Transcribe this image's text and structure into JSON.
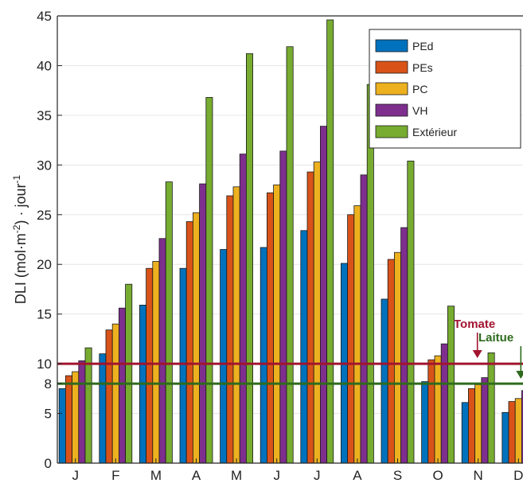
{
  "chart_data": {
    "type": "bar",
    "title": "",
    "xlabel": "",
    "ylabel": "DLI (mol·m⁻²)·jour⁻¹",
    "ylim": [
      0,
      45
    ],
    "yticks": [
      0,
      5,
      8,
      10,
      15,
      20,
      25,
      30,
      35,
      40,
      45
    ],
    "categories": [
      "J",
      "F",
      "M",
      "A",
      "M",
      "J",
      "J",
      "A",
      "S",
      "O",
      "N",
      "D"
    ],
    "series": [
      {
        "name": "PEd",
        "color": "#0072BD",
        "values": [
          7.5,
          11.0,
          15.9,
          19.6,
          21.5,
          21.7,
          23.4,
          20.1,
          16.5,
          8.2,
          6.1,
          5.1
        ]
      },
      {
        "name": "PEs",
        "color": "#D95319",
        "values": [
          8.8,
          13.4,
          19.6,
          24.3,
          26.9,
          27.2,
          29.3,
          25.0,
          20.5,
          10.4,
          7.5,
          6.2
        ]
      },
      {
        "name": "PC",
        "color": "#EDB120",
        "values": [
          9.2,
          14.0,
          20.3,
          25.2,
          27.8,
          28.0,
          30.3,
          25.9,
          21.2,
          10.8,
          7.9,
          6.5
        ]
      },
      {
        "name": "VH",
        "color": "#7E2F8E",
        "values": [
          10.3,
          15.6,
          22.6,
          28.1,
          31.1,
          31.4,
          33.9,
          29.0,
          23.7,
          12.0,
          8.6,
          7.3
        ]
      },
      {
        "name": "Extérieur",
        "color": "#77AC30",
        "values": [
          11.6,
          18.0,
          28.3,
          36.8,
          41.2,
          41.9,
          44.6,
          38.1,
          30.4,
          15.8,
          11.1,
          8.3
        ]
      }
    ],
    "reference_lines": [
      {
        "label": "Tomate",
        "value": 10,
        "color": "#A2142F",
        "arrow_month": "N"
      },
      {
        "label": "Laitue",
        "value": 8,
        "color": "#2E6B1E",
        "arrow_month": "D"
      }
    ],
    "grid": true,
    "legend_position": "top-right"
  }
}
